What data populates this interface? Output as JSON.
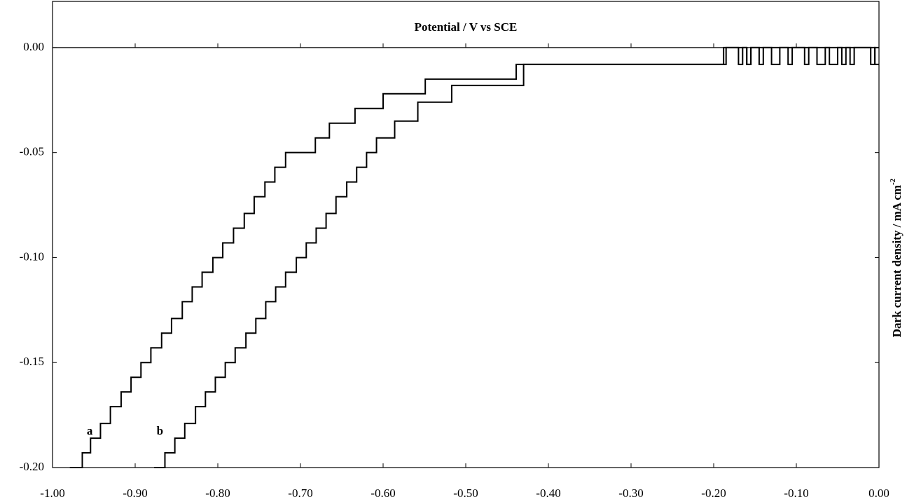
{
  "chart_data": {
    "type": "line",
    "step": "post",
    "x_label": "Potential / V vs SCE",
    "y_label": "Dark current density / mA cm",
    "y_label_sup": "-2",
    "annotations": [
      {
        "text": "a",
        "x": -0.955,
        "y": -0.183
      },
      {
        "text": "b",
        "x": -0.87,
        "y": -0.183
      }
    ],
    "xlim": [
      -1.0,
      0.0
    ],
    "ylim": [
      -0.2,
      0.022
    ],
    "xticks": [
      {
        "value": -1.0,
        "label": "-1.00"
      },
      {
        "value": -0.9,
        "label": "-0.90"
      },
      {
        "value": -0.8,
        "label": "-0.80"
      },
      {
        "value": -0.7,
        "label": "-0.70"
      },
      {
        "value": -0.6,
        "label": "-0.60"
      },
      {
        "value": -0.5,
        "label": "-0.50"
      },
      {
        "value": -0.4,
        "label": "-0.40"
      },
      {
        "value": -0.3,
        "label": "-0.30"
      },
      {
        "value": -0.2,
        "label": "-0.20"
      },
      {
        "value": -0.1,
        "label": "-0.10"
      },
      {
        "value": 0.0,
        "label": "0.00"
      }
    ],
    "yticks": [
      {
        "value": -0.2,
        "label": "-0.20"
      },
      {
        "value": -0.15,
        "label": "-0.15"
      },
      {
        "value": -0.1,
        "label": "-0.10"
      },
      {
        "value": -0.05,
        "label": "-0.05"
      },
      {
        "value": 0.0,
        "label": "0.00"
      }
    ],
    "series": [
      {
        "name": "a",
        "color": "#000000",
        "x": [
          -0.979,
          -0.964,
          -0.954,
          -0.942,
          -0.93,
          -0.917,
          -0.905,
          -0.893,
          -0.881,
          -0.868,
          -0.856,
          -0.843,
          -0.831,
          -0.819,
          -0.806,
          -0.794,
          -0.781,
          -0.768,
          -0.756,
          -0.743,
          -0.731,
          -0.718,
          -0.682,
          -0.665,
          -0.634,
          -0.6,
          -0.549,
          -0.439,
          -0.187,
          -0.185,
          -0.17,
          -0.165,
          -0.16,
          -0.155,
          -0.145,
          -0.14,
          -0.11,
          -0.105,
          -0.09,
          -0.085,
          -0.06,
          -0.05,
          -0.035,
          -0.03,
          -0.005,
          0.0
        ],
        "values": [
          -0.2,
          -0.193,
          -0.186,
          -0.179,
          -0.171,
          -0.164,
          -0.157,
          -0.15,
          -0.143,
          -0.136,
          -0.129,
          -0.121,
          -0.114,
          -0.107,
          -0.1,
          -0.093,
          -0.086,
          -0.079,
          -0.071,
          -0.064,
          -0.057,
          -0.05,
          -0.043,
          -0.036,
          -0.029,
          -0.022,
          -0.015,
          -0.008,
          -0.008,
          0.0,
          -0.008,
          0.0,
          -0.008,
          0.0,
          -0.008,
          0.0,
          -0.008,
          0.0,
          -0.008,
          0.0,
          -0.008,
          0.0,
          -0.008,
          0.0,
          -0.008,
          -0.008
        ]
      },
      {
        "name": "b",
        "color": "#000000",
        "x": [
          -0.877,
          -0.864,
          -0.852,
          -0.84,
          -0.827,
          -0.815,
          -0.803,
          -0.791,
          -0.779,
          -0.766,
          -0.754,
          -0.742,
          -0.73,
          -0.718,
          -0.705,
          -0.693,
          -0.681,
          -0.669,
          -0.657,
          -0.644,
          -0.632,
          -0.62,
          -0.608,
          -0.586,
          -0.558,
          -0.517,
          -0.43,
          -0.188,
          -0.16,
          -0.155,
          -0.13,
          -0.12,
          -0.075,
          -0.065,
          -0.045,
          -0.04,
          -0.01,
          -0.005,
          0.0
        ],
        "values": [
          -0.2,
          -0.193,
          -0.186,
          -0.179,
          -0.171,
          -0.164,
          -0.157,
          -0.15,
          -0.143,
          -0.136,
          -0.129,
          -0.121,
          -0.114,
          -0.107,
          -0.1,
          -0.093,
          -0.086,
          -0.079,
          -0.071,
          -0.064,
          -0.057,
          -0.05,
          -0.043,
          -0.035,
          -0.026,
          -0.018,
          -0.008,
          0.0,
          -0.008,
          0.0,
          -0.008,
          0.0,
          -0.008,
          0.0,
          -0.008,
          0.0,
          -0.008,
          0.0,
          0.0
        ]
      }
    ]
  }
}
